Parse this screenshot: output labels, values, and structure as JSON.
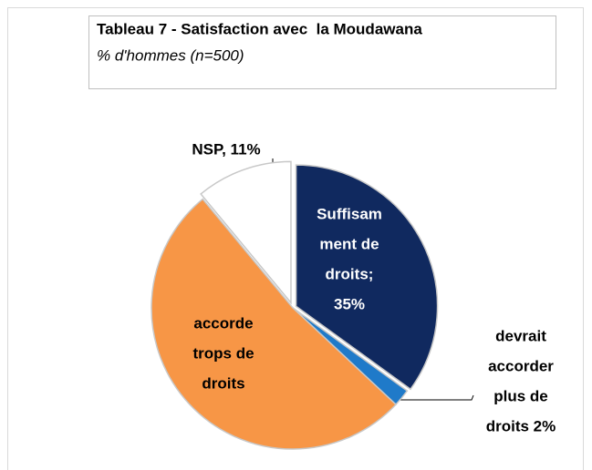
{
  "chart_data": {
    "type": "pie",
    "title": "Tableau 7 - Satisfaction avec  la Moudawana",
    "subtitle": "% d'hommes (n=500)",
    "values": [
      35,
      2,
      52,
      11
    ],
    "labels": [
      [
        "Suffisam",
        "ment de",
        "droits;",
        "35%"
      ],
      [
        "devrait",
        "accorder",
        "plus de",
        "droits 2%"
      ],
      [
        "accorde",
        "trops de",
        "droits"
      ],
      [
        "NSP, 11%"
      ]
    ],
    "colors": [
      "#10295f",
      "#1f7ac9",
      "#f79646",
      "#ffffff"
    ]
  }
}
